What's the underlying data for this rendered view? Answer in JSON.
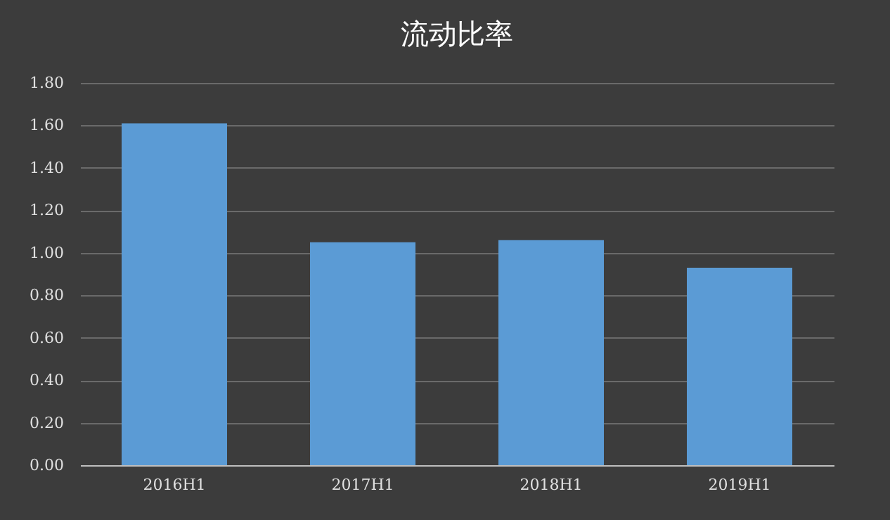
{
  "chart_data": {
    "type": "bar",
    "title": "流动比率",
    "categories": [
      "2016H1",
      "2017H1",
      "2018H1",
      "2019H1"
    ],
    "values": [
      1.61,
      1.05,
      1.06,
      0.93
    ],
    "color": "#5b9bd5",
    "ylim": [
      0,
      1.8
    ],
    "yticks": [
      {
        "value": 0,
        "label": "0.00"
      },
      {
        "value": 0.2,
        "label": "0.20"
      },
      {
        "value": 0.4,
        "label": "0.40"
      },
      {
        "value": 0.6,
        "label": "0.60"
      },
      {
        "value": 0.8,
        "label": "0.80"
      },
      {
        "value": 1.0,
        "label": "1.00"
      },
      {
        "value": 1.2,
        "label": "1.20"
      },
      {
        "value": 1.4,
        "label": "1.40"
      },
      {
        "value": 1.6,
        "label": "1.60"
      },
      {
        "value": 1.8,
        "label": "1.80"
      }
    ],
    "grid": "y"
  }
}
